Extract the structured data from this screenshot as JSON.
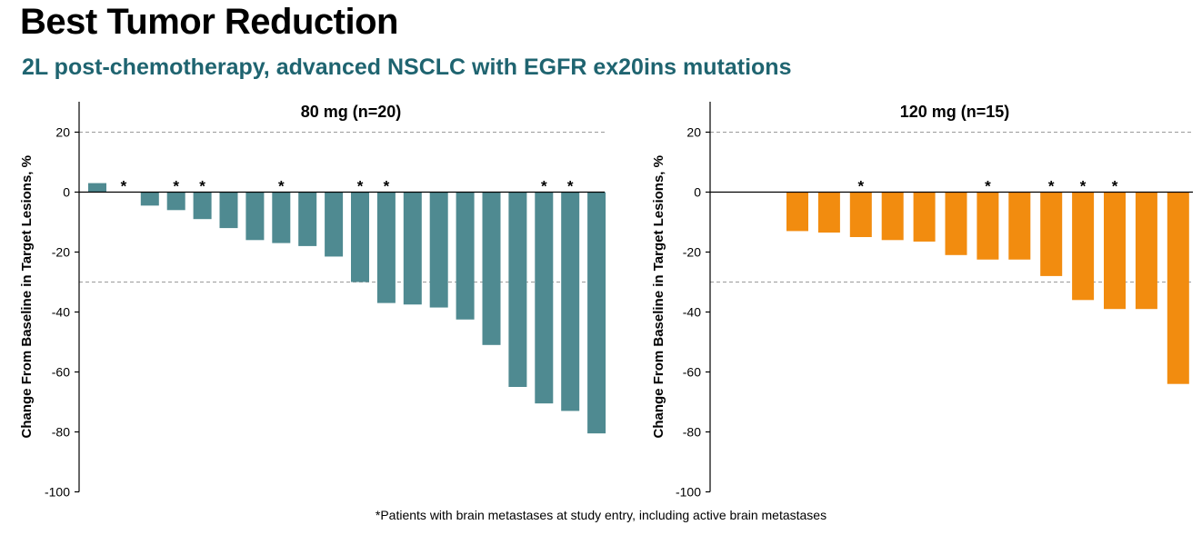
{
  "header": {
    "title": "Best Tumor Reduction",
    "subtitle": "2L post-chemotherapy, advanced NSCLC with EGFR ex20ins mutations",
    "subtitle_color": "#1f6470"
  },
  "footnote": "*Patients with brain metastases at study entry, including active brain metastases",
  "chart_data": [
    {
      "type": "bar",
      "title": "80 mg (n=20)",
      "ylabel": "Change From Baseline in Target Lesions, %",
      "xlabel": "",
      "ylim": [
        -100,
        30
      ],
      "yticks": [
        20,
        0,
        -20,
        -40,
        -60,
        -80,
        -100
      ],
      "reference_lines": [
        20,
        -30
      ],
      "color": "#4f8a91",
      "values": [
        3,
        0,
        -4.5,
        -6,
        -9,
        -12,
        -16,
        -17,
        -18,
        -21.5,
        -30,
        -37,
        -37.5,
        -38.5,
        -42.5,
        -51,
        -65,
        -70.5,
        -73,
        -80.5
      ],
      "brain_metastases": [
        false,
        true,
        false,
        true,
        true,
        false,
        false,
        true,
        false,
        false,
        true,
        true,
        false,
        false,
        false,
        false,
        false,
        true,
        true,
        false
      ]
    },
    {
      "type": "bar",
      "title": "120 mg (n=15)",
      "ylabel": "Change From Baseline in Target Lesions, %",
      "xlabel": "",
      "ylim": [
        -100,
        30
      ],
      "yticks": [
        20,
        0,
        -20,
        -40,
        -60,
        -80,
        -100
      ],
      "reference_lines": [
        20,
        -30
      ],
      "color": "#f28c0f",
      "values": [
        -13,
        -13.5,
        -15,
        -16,
        -16.5,
        -21,
        -22.5,
        -22.5,
        -28,
        -36,
        -39,
        -39,
        -64
      ],
      "brain_metastases": [
        false,
        false,
        true,
        false,
        false,
        false,
        true,
        false,
        true,
        true,
        true,
        false,
        false
      ]
    }
  ]
}
